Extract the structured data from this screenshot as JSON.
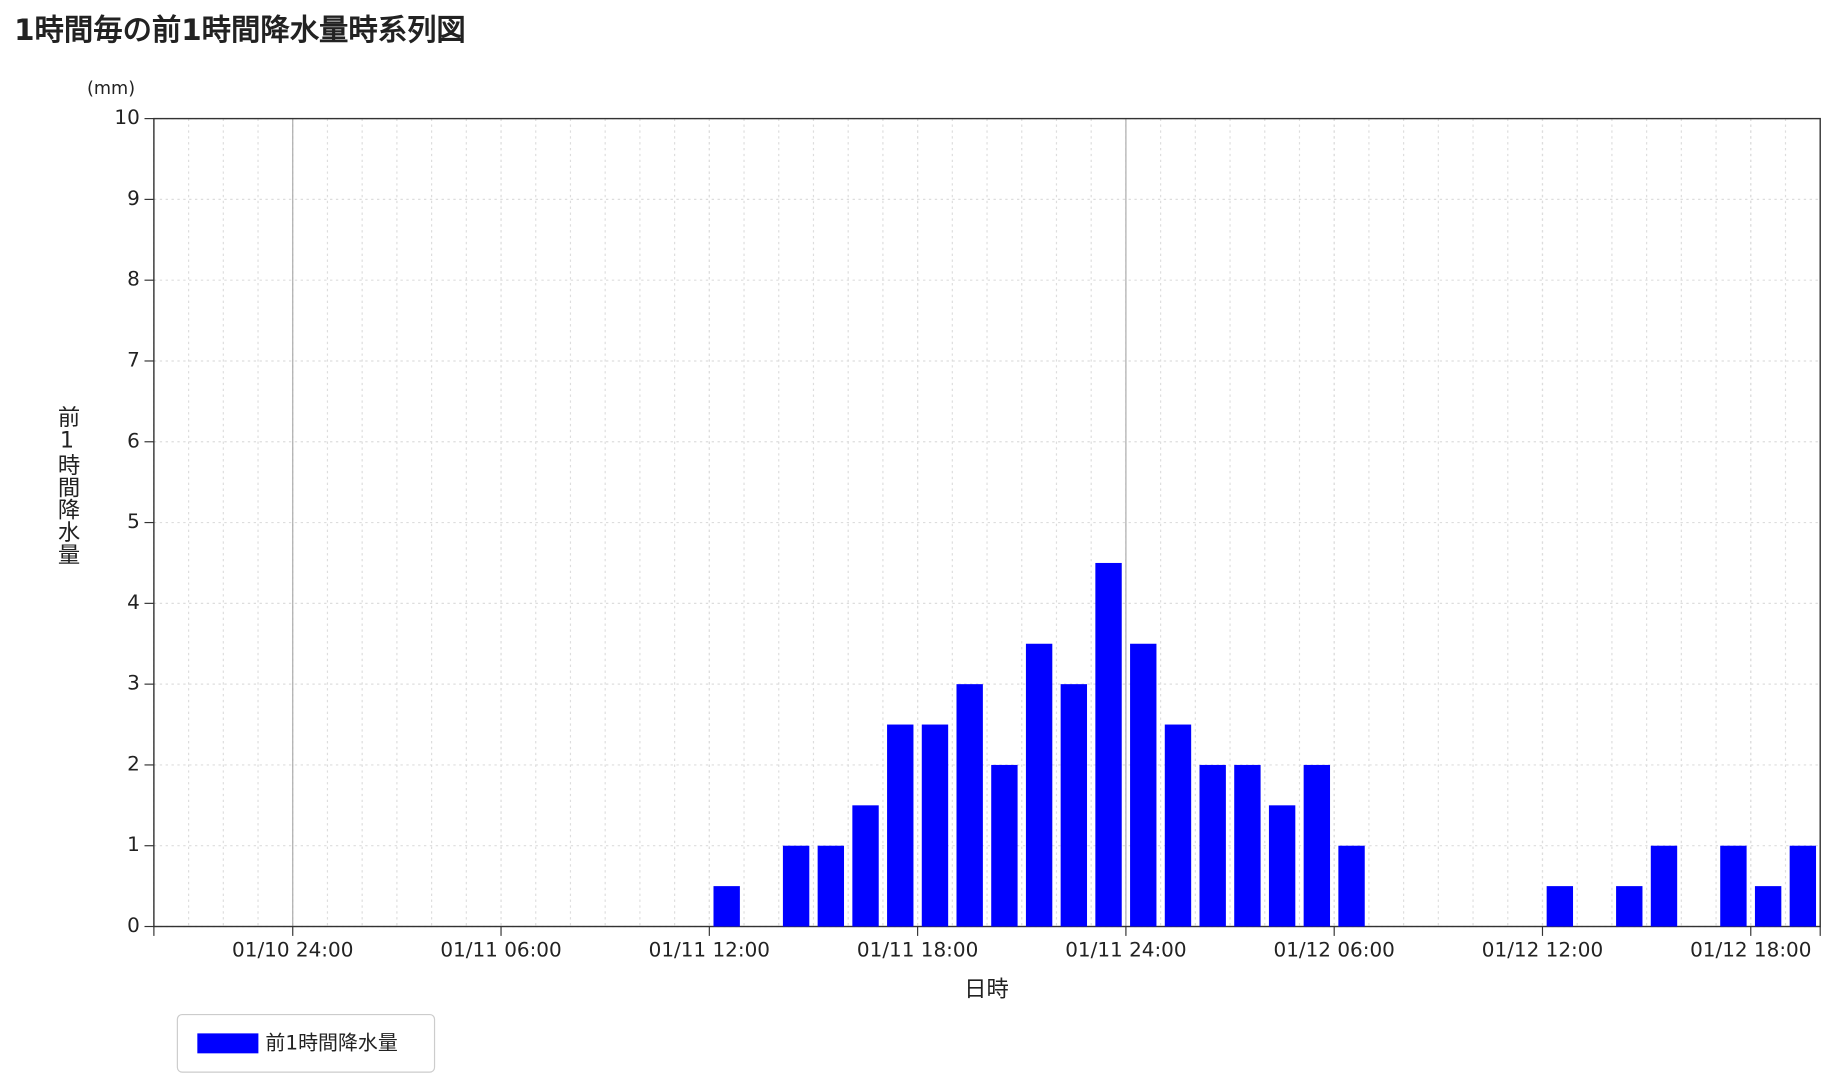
{
  "chart_data": {
    "type": "bar",
    "title": "1時間毎の前1時間降水量時系列図",
    "y_unit": "(mm)",
    "y_label": "前1時間降水量",
    "x_label": "日時",
    "categories": [
      null,
      null,
      null,
      null,
      null,
      null,
      null,
      null,
      null,
      null,
      null,
      null,
      null,
      null,
      null,
      null,
      null,
      null,
      null,
      null,
      null,
      null,
      null,
      null,
      null,
      null,
      null,
      null,
      null,
      null,
      null,
      null,
      null,
      null,
      null,
      null,
      null,
      null,
      null,
      null,
      null,
      null,
      null,
      null,
      null,
      null,
      null,
      null
    ],
    "series": [
      {
        "name": "前1時間降水量",
        "color": "#0000ff",
        "values": [
          0,
          0,
          0,
          0,
          0,
          0,
          0,
          0,
          0,
          0,
          0,
          0,
          0,
          0,
          0,
          0,
          0.5,
          0,
          1,
          1,
          1.5,
          2.5,
          2.5,
          3,
          2,
          3.5,
          3,
          4.5,
          3.5,
          2.5,
          2,
          2,
          1.5,
          2,
          1,
          0,
          0,
          0,
          0,
          0,
          0.5,
          0,
          0.5,
          1,
          0,
          1,
          0.5,
          1
        ]
      }
    ],
    "xlim": [
      0,
      48
    ],
    "xticks": [
      {
        "value": 4,
        "label": "01/10 24:00"
      },
      {
        "value": 10,
        "label": "01/11 06:00"
      },
      {
        "value": 16,
        "label": "01/11 12:00"
      },
      {
        "value": 22,
        "label": "01/11 18:00"
      },
      {
        "value": 28,
        "label": "01/11 24:00"
      },
      {
        "value": 34,
        "label": "01/12 06:00"
      },
      {
        "value": 40,
        "label": "01/12 12:00"
      },
      {
        "value": 46,
        "label": "01/12 18:00"
      }
    ],
    "ylim": [
      0,
      10
    ],
    "yticks": [
      0,
      1,
      2,
      3,
      4,
      5,
      6,
      7,
      8,
      9,
      10
    ],
    "grid": true,
    "legend": "bottom-left"
  }
}
